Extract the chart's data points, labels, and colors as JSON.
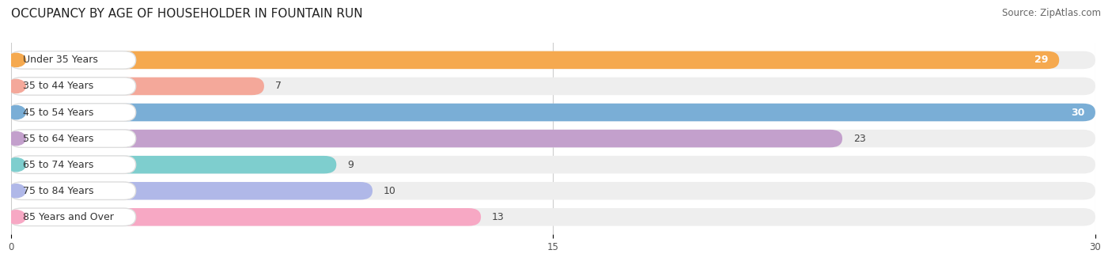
{
  "title": "OCCUPANCY BY AGE OF HOUSEHOLDER IN FOUNTAIN RUN",
  "source": "Source: ZipAtlas.com",
  "categories": [
    "Under 35 Years",
    "35 to 44 Years",
    "45 to 54 Years",
    "55 to 64 Years",
    "65 to 74 Years",
    "75 to 84 Years",
    "85 Years and Over"
  ],
  "values": [
    29,
    7,
    30,
    23,
    9,
    10,
    13
  ],
  "bar_colors": [
    "#F5A94F",
    "#F4A89A",
    "#7AAED6",
    "#C3A0CC",
    "#7ECECE",
    "#B0B8E8",
    "#F7A8C4"
  ],
  "xlim": [
    0,
    30
  ],
  "xticks": [
    0,
    15,
    30
  ],
  "background_color": "#ffffff",
  "bar_background_color": "#eeeeee",
  "title_fontsize": 11,
  "label_fontsize": 9,
  "value_fontsize": 9,
  "source_fontsize": 8.5,
  "white_label_bg_color": "#ffffff",
  "label_border_color": "#dddddd"
}
